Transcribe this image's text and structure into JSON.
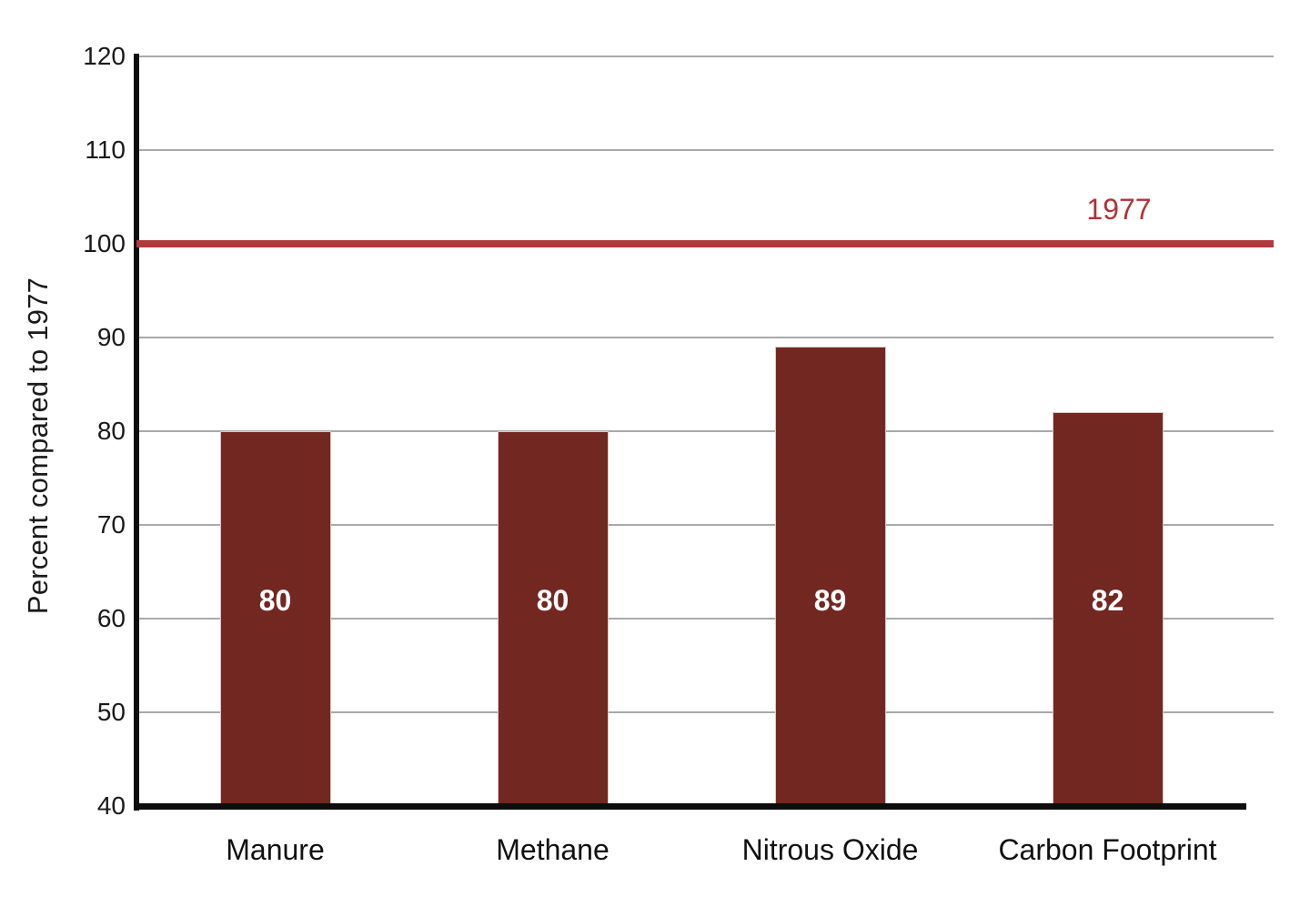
{
  "chart_data": {
    "type": "bar",
    "categories": [
      "Manure",
      "Methane",
      "Nitrous Oxide",
      "Carbon Footprint"
    ],
    "values": [
      80,
      80,
      89,
      82
    ],
    "value_labels": [
      "80",
      "80",
      "89",
      "82"
    ],
    "title": "",
    "xlabel": "",
    "ylabel": "Percent compared to 1977",
    "ylim": [
      40,
      120
    ],
    "yticks": [
      40,
      50,
      60,
      70,
      80,
      90,
      100,
      110,
      120
    ],
    "grid": "horizontal",
    "legend": "none",
    "reference_line": {
      "value": 100,
      "label": "1977"
    },
    "colors": {
      "bar": "#722721",
      "bar_value_text": "#ffffff",
      "axis": "#0d0d0d",
      "gridline": "#a9a9a9",
      "tick_text": "#1a1a1a",
      "category_text": "#111111",
      "reference_line": "#b23a3c",
      "reference_label": "#ae3236",
      "background": "#ffffff"
    }
  }
}
